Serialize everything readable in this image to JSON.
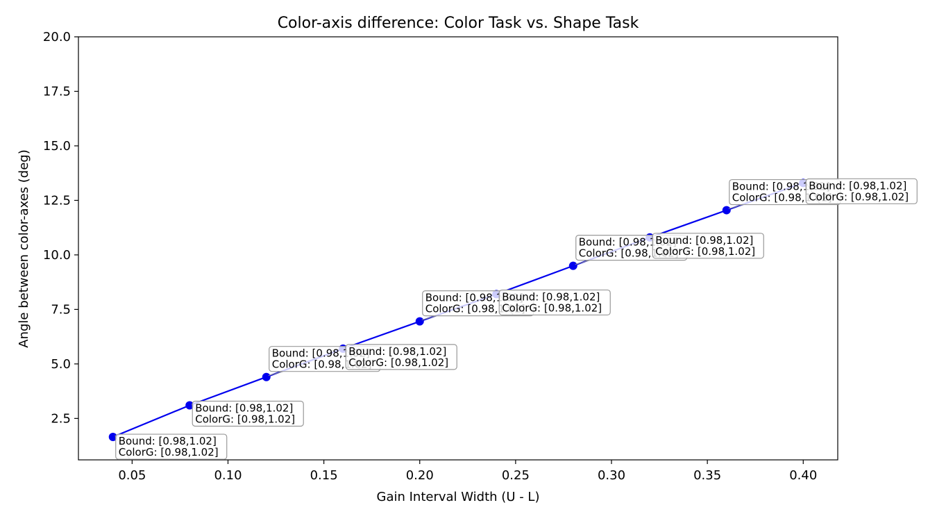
{
  "chart_data": {
    "type": "line",
    "title": "Color-axis difference: Color Task vs. Shape Task",
    "xlabel": "Gain Interval Width (U - L)",
    "ylabel": "Angle between color-axes (deg)",
    "xlim": [
      0.022,
      0.418
    ],
    "ylim": [
      0.6,
      20.0
    ],
    "xticks": [
      0.05,
      0.1,
      0.15,
      0.2,
      0.25,
      0.3,
      0.35,
      0.4
    ],
    "xtick_labels": [
      "0.05",
      "0.10",
      "0.15",
      "0.20",
      "0.25",
      "0.30",
      "0.35",
      "0.40"
    ],
    "yticks": [
      2.5,
      5.0,
      7.5,
      10.0,
      12.5,
      15.0,
      17.5,
      20.0
    ],
    "ytick_labels": [
      "2.5",
      "5.0",
      "7.5",
      "10.0",
      "12.5",
      "15.0",
      "17.5",
      "20.0"
    ],
    "grid": false,
    "series": [
      {
        "color": "#0000ee",
        "x": [
          0.04,
          0.08,
          0.12,
          0.16,
          0.2,
          0.24,
          0.28,
          0.32,
          0.36,
          0.4
        ],
        "y": [
          1.65,
          3.1,
          4.4,
          5.7,
          6.95,
          8.2,
          9.5,
          10.8,
          12.05,
          13.3
        ]
      }
    ],
    "annotations": [
      {
        "line1": "Bound: [0.98,1.02]",
        "line2": "ColorG: [0.98,1.02]"
      },
      {
        "line1": "Bound: [0.98,1.02]",
        "line2": "ColorG: [0.98,1.02]"
      },
      {
        "line1": "Bound: [0.98,1.02]",
        "line2": "ColorG: [0.98,1.02]"
      },
      {
        "line1": "Bound: [0.98,1.02]",
        "line2": "ColorG: [0.98,1.02]"
      },
      {
        "line1": "Bound: [0.98,1.02]",
        "line2": "ColorG: [0.98,1.02]"
      },
      {
        "line1": "Bound: [0.98,1.02]",
        "line2": "ColorG: [0.98,1.02]"
      },
      {
        "line1": "Bound: [0.98,1.02]",
        "line2": "ColorG: [0.98,1.02]"
      },
      {
        "line1": "Bound: [0.98,1.02]",
        "line2": "ColorG: [0.98,1.02]"
      },
      {
        "line1": "Bound: [0.98,1.02]",
        "line2": "ColorG: [0.98,1.02]"
      },
      {
        "line1": "Bound: [0.98,1.02]",
        "line2": "ColorG: [0.98,1.02]"
      }
    ]
  }
}
